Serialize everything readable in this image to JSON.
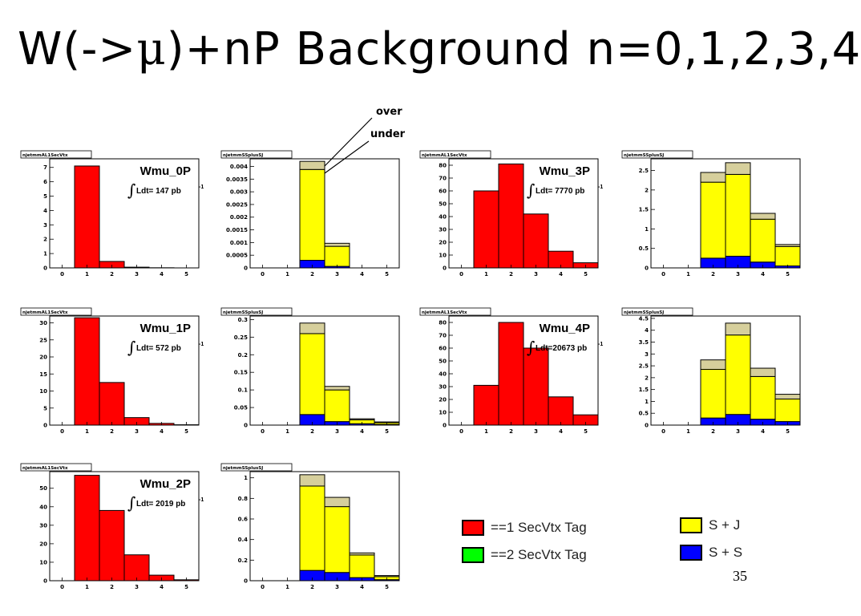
{
  "slide": {
    "title_pre": "W(->",
    "title_mu": "μ",
    "title_post": ")+nP Background  n=0,1,2,3,4",
    "page_number": "35",
    "annotation_over": "over",
    "annotation_under": "under"
  },
  "legend": {
    "secvtx": [
      {
        "label": "==1 SecVtx Tag",
        "color": "#ff0000"
      },
      {
        "label": "==2 SecVtx Tag",
        "color": "#00ff00"
      }
    ],
    "sj": [
      {
        "label": "S + J",
        "color": "#ffff00"
      },
      {
        "label": "S + S",
        "color": "#0000ff"
      }
    ]
  },
  "colors": {
    "red": "#ff0000",
    "yellow": "#ffff00",
    "blue": "#0000ff",
    "tan": "#d6cf9c"
  },
  "chart_data": [
    {
      "id": "p0a",
      "type": "bar",
      "hist_name": "njetmmAL1SecVtx",
      "label": "Wmu_0P",
      "lumi": "Ldt=  147 pb",
      "lumi_exp": "-1",
      "xlim": [
        -0.5,
        5.5
      ],
      "ylim": [
        0,
        7.6
      ],
      "yticks": [
        "0",
        "1",
        "2",
        "3",
        "4",
        "5",
        "6",
        "7"
      ],
      "xticks": [
        "0",
        "1",
        "2",
        "3",
        "4",
        "5"
      ],
      "bins": [
        0,
        1,
        2,
        3,
        4,
        5
      ],
      "series": [
        {
          "role": "red",
          "values": [
            0,
            7.1,
            0.45,
            0.05,
            0.01,
            0
          ]
        }
      ]
    },
    {
      "id": "p0b",
      "type": "bar",
      "hist_name": "njetmmSSplusSJ",
      "xlim": [
        -0.5,
        5.5
      ],
      "ylim": [
        0,
        0.0043
      ],
      "yticks": [
        "0",
        "0.0005",
        "0.001",
        "0.0015",
        "0.002",
        "0.0025",
        "0.003",
        "0.0035",
        "0.004"
      ],
      "xticks": [
        "0",
        "1",
        "2",
        "3",
        "4",
        "5"
      ],
      "bins": [
        0,
        1,
        2,
        3,
        4,
        5
      ],
      "series": [
        {
          "role": "blue",
          "values": [
            0,
            0,
            0.0003,
            6e-05,
            0,
            0
          ]
        },
        {
          "role": "yellow",
          "values": [
            0,
            0,
            0.00358,
            0.00079,
            0,
            0
          ]
        },
        {
          "role": "tan",
          "values": [
            0,
            0,
            0.00032,
            0.00012,
            0,
            0
          ]
        }
      ]
    },
    {
      "id": "p3a",
      "type": "bar",
      "hist_name": "njetmmAL1SecVtx",
      "label": "Wmu_3P",
      "lumi": "Ldt= 7770 pb",
      "lumi_exp": "-1",
      "xlim": [
        -0.5,
        5.5
      ],
      "ylim": [
        0,
        85
      ],
      "yticks": [
        "0",
        "10",
        "20",
        "30",
        "40",
        "50",
        "60",
        "70",
        "80"
      ],
      "xticks": [
        "0",
        "1",
        "2",
        "3",
        "4",
        "5"
      ],
      "bins": [
        0,
        1,
        2,
        3,
        4,
        5
      ],
      "series": [
        {
          "role": "red",
          "values": [
            0,
            60,
            81,
            42,
            13,
            4
          ]
        }
      ]
    },
    {
      "id": "p3b",
      "type": "bar",
      "hist_name": "njetmmSSplusSJ",
      "xlim": [
        -0.5,
        5.5
      ],
      "ylim": [
        0,
        2.8
      ],
      "yticks": [
        "0",
        "0.5",
        "1",
        "1.5",
        "2",
        "2.5"
      ],
      "xticks": [
        "0",
        "1",
        "2",
        "3",
        "4",
        "5"
      ],
      "bins": [
        0,
        1,
        2,
        3,
        4,
        5
      ],
      "series": [
        {
          "role": "blue",
          "values": [
            0,
            0,
            0.25,
            0.3,
            0.15,
            0.05
          ]
        },
        {
          "role": "yellow",
          "values": [
            0,
            0,
            1.95,
            2.1,
            1.1,
            0.5
          ]
        },
        {
          "role": "tan",
          "values": [
            0,
            0,
            0.25,
            0.3,
            0.15,
            0.05
          ]
        }
      ]
    },
    {
      "id": "p1a",
      "type": "bar",
      "hist_name": "njetmmAL1SecVtx",
      "label": "Wmu_1P",
      "lumi": "Ldt=  572 pb",
      "lumi_exp": "-1",
      "xlim": [
        -0.5,
        5.5
      ],
      "ylim": [
        0,
        32
      ],
      "yticks": [
        "0",
        "5",
        "10",
        "15",
        "20",
        "25",
        "30"
      ],
      "xticks": [
        "0",
        "1",
        "2",
        "3",
        "4",
        "5"
      ],
      "bins": [
        0,
        1,
        2,
        3,
        4,
        5
      ],
      "series": [
        {
          "role": "red",
          "values": [
            0,
            31.5,
            12.5,
            2.2,
            0.5,
            0.1
          ]
        }
      ]
    },
    {
      "id": "p1b",
      "type": "bar",
      "hist_name": "njetmmSSplusSJ",
      "xlim": [
        -0.5,
        5.5
      ],
      "ylim": [
        0,
        0.31
      ],
      "yticks": [
        "0",
        "0.05",
        "0.1",
        "0.15",
        "0.2",
        "0.25",
        "0.3"
      ],
      "xticks": [
        "0",
        "1",
        "2",
        "3",
        "4",
        "5"
      ],
      "bins": [
        0,
        1,
        2,
        3,
        4,
        5
      ],
      "series": [
        {
          "role": "blue",
          "values": [
            0,
            0,
            0.03,
            0.01,
            0.004,
            0.002
          ]
        },
        {
          "role": "yellow",
          "values": [
            0,
            0,
            0.23,
            0.09,
            0.011,
            0.005
          ]
        },
        {
          "role": "tan",
          "values": [
            0,
            0,
            0.03,
            0.01,
            0.003,
            0.002
          ]
        }
      ]
    },
    {
      "id": "p4a",
      "type": "bar",
      "hist_name": "njetmmAL1SecVtx",
      "label": "Wmu_4P",
      "lumi": "Ldt=20673 pb",
      "lumi_exp": "-1",
      "xlim": [
        -0.5,
        5.5
      ],
      "ylim": [
        0,
        85
      ],
      "yticks": [
        "0",
        "10",
        "20",
        "30",
        "40",
        "50",
        "60",
        "70",
        "80"
      ],
      "xticks": [
        "0",
        "1",
        "2",
        "3",
        "4",
        "5"
      ],
      "bins": [
        0,
        1,
        2,
        3,
        4,
        5
      ],
      "series": [
        {
          "role": "red",
          "values": [
            0,
            31,
            80,
            60,
            22,
            8
          ]
        }
      ]
    },
    {
      "id": "p4b",
      "type": "bar",
      "hist_name": "njetmmSSplusSJ",
      "xlim": [
        -0.5,
        5.5
      ],
      "ylim": [
        0,
        4.6
      ],
      "yticks": [
        "0",
        "0.5",
        "1",
        "1.5",
        "2",
        "2.5",
        "3",
        "3.5",
        "4",
        "4.5"
      ],
      "xticks": [
        "0",
        "1",
        "2",
        "3",
        "4",
        "5"
      ],
      "bins": [
        0,
        1,
        2,
        3,
        4,
        5
      ],
      "series": [
        {
          "role": "blue",
          "values": [
            0,
            0,
            0.3,
            0.45,
            0.25,
            0.15
          ]
        },
        {
          "role": "yellow",
          "values": [
            0,
            0,
            2.05,
            3.35,
            1.8,
            0.95
          ]
        },
        {
          "role": "tan",
          "values": [
            0,
            0,
            0.4,
            0.5,
            0.35,
            0.2
          ]
        }
      ]
    },
    {
      "id": "p2a",
      "type": "bar",
      "hist_name": "njetmmAL1SecVtx",
      "label": "Wmu_2P",
      "lumi": "Ldt= 2019 pb",
      "lumi_exp": "-1",
      "xlim": [
        -0.5,
        5.5
      ],
      "ylim": [
        0,
        59
      ],
      "yticks": [
        "0",
        "10",
        "20",
        "30",
        "40",
        "50"
      ],
      "xticks": [
        "0",
        "1",
        "2",
        "3",
        "4",
        "5"
      ],
      "bins": [
        0,
        1,
        2,
        3,
        4,
        5
      ],
      "series": [
        {
          "role": "red",
          "values": [
            0,
            57,
            38,
            14,
            3,
            0.5
          ]
        }
      ]
    },
    {
      "id": "p2b",
      "type": "bar",
      "hist_name": "njetmmSSplusSJ",
      "xlim": [
        -0.5,
        5.5
      ],
      "ylim": [
        0,
        1.06
      ],
      "yticks": [
        "0",
        "0.2",
        "0.4",
        "0.6",
        "0.8",
        "1"
      ],
      "xticks": [
        "0",
        "1",
        "2",
        "3",
        "4",
        "5"
      ],
      "bins": [
        0,
        1,
        2,
        3,
        4,
        5
      ],
      "series": [
        {
          "role": "blue",
          "values": [
            0,
            0,
            0.1,
            0.08,
            0.03,
            0.01
          ]
        },
        {
          "role": "yellow",
          "values": [
            0,
            0,
            0.82,
            0.64,
            0.22,
            0.03
          ]
        },
        {
          "role": "tan",
          "values": [
            0,
            0,
            0.11,
            0.09,
            0.02,
            0.01
          ]
        }
      ]
    }
  ]
}
